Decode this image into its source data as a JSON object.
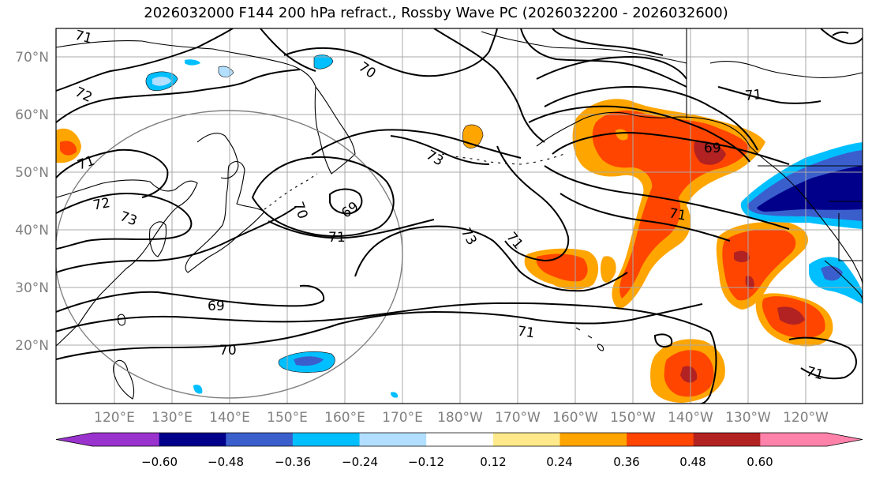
{
  "title": "2026032000 F144 200 hPa refract., Rossby Wave PC (2026032200 - 2026032600)",
  "lat_labels": [
    "70°N",
    "60°N",
    "50°N",
    "40°N",
    "30°N",
    "20°N"
  ],
  "lon_labels": [
    "120°E",
    "130°E",
    "140°E",
    "150°E",
    "160°E",
    "170°E",
    "180°W",
    "170°W",
    "160°W",
    "150°W",
    "140°W",
    "130°W",
    "120°W"
  ],
  "colorbar": {
    "colors": [
      "#9a32cd",
      "#00008b",
      "#3a5fcd",
      "#00bfff",
      "#b2dfff",
      "#ffffff",
      "#ffe98a",
      "#ffa500",
      "#ff4500",
      "#b22222",
      "#ff82ab"
    ],
    "labels": [
      "−0.60",
      "−0.48",
      "−0.36",
      "−0.24",
      "−0.12",
      "0.12",
      "0.24",
      "0.36",
      "0.48",
      "0.60"
    ]
  },
  "contour_labels": [
    "71",
    "70",
    "72",
    "71",
    "72",
    "73",
    "73",
    "70",
    "69",
    "71",
    "73",
    "71",
    "69",
    "70",
    "71",
    "69",
    "71",
    "71",
    "71"
  ]
}
